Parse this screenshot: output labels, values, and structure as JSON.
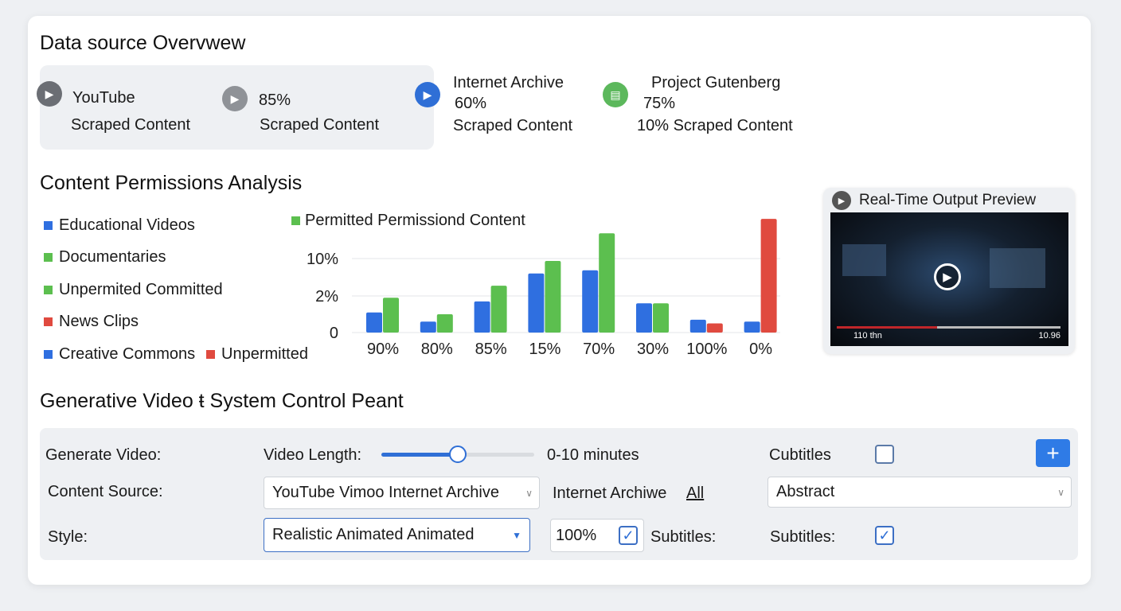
{
  "overview": {
    "title": "Data source Overvwew",
    "sources": [
      {
        "name": "YouTube",
        "sub": "Scraped Content",
        "icon": "play-icon",
        "color": "#6b6e74"
      },
      {
        "name": "85%",
        "sub": "Scraped Content",
        "icon": "play-icon",
        "color": "#8f9297"
      },
      {
        "name": "Internet Archive",
        "value": "60%",
        "sub": "Scraped Content",
        "icon": "play-icon",
        "color": "#2f6fd6"
      },
      {
        "name": "Project Gutenberg",
        "value": "75%",
        "sub": "10% Scraped Content",
        "icon": "document-icon",
        "color": "#5cb85c"
      }
    ]
  },
  "analysis": {
    "title": "Content Permissions Analysis",
    "legend": [
      {
        "label": "Educational Videos",
        "color": "#2f6fe0"
      },
      {
        "label": "Documentaries",
        "color": "#5cbf4f"
      },
      {
        "label": "Unpermited Committed",
        "color": "#5cbf4f"
      },
      {
        "label": "News Clips",
        "color": "#e04a3f"
      },
      {
        "label": "Creative Commons",
        "color": "#2f6fe0"
      },
      {
        "label": "Unpermitted",
        "color": "#e04a3f"
      }
    ]
  },
  "chart_data": {
    "type": "bar",
    "legend_title": "Permitted Permissiond Content",
    "categories": [
      "90%",
      "80%",
      "85%",
      "15%",
      "70%",
      "30%",
      "100%",
      "0%"
    ],
    "yticks": [
      {
        "value": 0,
        "label": "0"
      },
      {
        "value": 2,
        "label": "2%"
      },
      {
        "value": 10,
        "label": "10%"
      }
    ],
    "grid": true,
    "series": [
      {
        "values": [
          1.1,
          0.6,
          1.7,
          6.8,
          7.5,
          1.6,
          0.7,
          0.6
        ],
        "colors": [
          "#2f6fe0",
          "#2f6fe0",
          "#2f6fe0",
          "#2f6fe0",
          "#2f6fe0",
          "#2f6fe0",
          "#2f6fe0",
          "#2f6fe0"
        ]
      },
      {
        "values": [
          1.9,
          1.0,
          4.2,
          9.5,
          15.4,
          1.6,
          0.5,
          18.5
        ],
        "colors": [
          "#5cbf4f",
          "#5cbf4f",
          "#5cbf4f",
          "#5cbf4f",
          "#5cbf4f",
          "#5cbf4f",
          "#e04a3f",
          "#e04a3f"
        ]
      }
    ]
  },
  "preview": {
    "title": "Real-Time Output Preview",
    "time": "110 thn",
    "right": "10.96",
    "progress": 0.45
  },
  "control": {
    "title": "Generative Video ŧ System Control Peant",
    "generate_label": "Generate Video:",
    "length_label": "Video Length:",
    "length_range": "0-10 minutes",
    "length_value": 0.5,
    "subtitles_label": "Cubtitles",
    "subtitles_checked": false,
    "source_label": "Content Source:",
    "source_value": "YouTube Vimoo  Internet Archive",
    "source_extra": "Internet Archiwe",
    "source_all": "All",
    "abstract_value": "Abstract",
    "style_label": "Style:",
    "style_value": "Realistic Animated   Animated",
    "percent_value": "100%",
    "subtitles2": "Subtitles:",
    "subtitles3": "Subtitles:",
    "add": "+"
  }
}
